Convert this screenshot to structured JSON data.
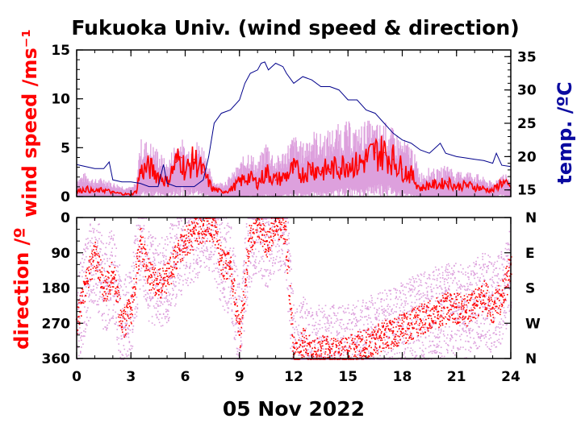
{
  "title": "Fukuoka Univ. (wind speed & direction)",
  "date_label": "05 Nov 2022",
  "colors": {
    "wind_mean": "#ff0000",
    "wind_range": "#dda0dd",
    "temperature": "#00008b",
    "direction_points": "#ff0000",
    "direction_range": "#dda0dd",
    "frame": "#000000"
  },
  "chart_data": [
    {
      "type": "line",
      "panel": "top",
      "ylabel": "wind speed /ms⁻¹",
      "y2label": "temp. /ºC",
      "xlim": [
        0,
        24
      ],
      "x_ticks": [
        "0",
        "3",
        "6",
        "9",
        "12",
        "15",
        "18",
        "21",
        "24"
      ],
      "ylim": [
        0,
        15
      ],
      "y_ticks": [
        "0",
        "5",
        "10",
        "15"
      ],
      "y2lim": [
        14,
        36
      ],
      "y2_ticks": [
        "15",
        "20",
        "25",
        "30",
        "35"
      ],
      "grid": false,
      "series": [
        {
          "key": "wind_speed",
          "x": [
            0,
            0.5,
            1,
            1.5,
            2,
            2.5,
            3,
            3.3,
            3.5,
            4,
            4.5,
            5,
            5.5,
            5.8,
            6,
            6.5,
            7,
            7.5,
            8,
            8.5,
            9,
            9.5,
            10,
            10.5,
            11,
            11.5,
            12,
            12.5,
            13,
            13.5,
            14,
            14.5,
            15,
            15.5,
            16,
            16.5,
            17,
            17.5,
            18,
            18.5,
            19,
            19.5,
            20,
            20.5,
            21,
            21.5,
            22,
            22.5,
            23,
            23.5,
            24
          ],
          "values": [
            0.5,
            0.8,
            0.5,
            0.7,
            0.4,
            0.3,
            0.2,
            0.5,
            2.5,
            3.0,
            2.2,
            1.5,
            3.5,
            4.0,
            2.5,
            3.8,
            2.5,
            0.8,
            0.5,
            0.7,
            1.5,
            2.0,
            1.4,
            2.5,
            1.7,
            2.0,
            2.8,
            2.3,
            3.0,
            2.6,
            2.8,
            3.0,
            3.5,
            3.2,
            3.8,
            4.5,
            4.5,
            3.8,
            2.8,
            2.2,
            0.8,
            1.2,
            1.2,
            1.5,
            1.0,
            1.2,
            1.0,
            0.8,
            0.6,
            1.5,
            0.9
          ],
          "high": [
            2.0,
            2.5,
            1.8,
            2.0,
            1.5,
            1.2,
            1.0,
            1.5,
            6.0,
            5.8,
            5.0,
            3.5,
            6.0,
            6.2,
            5.0,
            6.0,
            5.5,
            1.8,
            1.5,
            2.2,
            3.5,
            5.0,
            3.5,
            6.0,
            4.0,
            5.0,
            6.5,
            5.5,
            7.0,
            6.5,
            7.0,
            7.5,
            7.8,
            7.0,
            8.0,
            7.5,
            7.8,
            7.0,
            6.0,
            5.5,
            2.5,
            3.0,
            2.8,
            3.5,
            2.5,
            2.8,
            2.5,
            2.0,
            1.5,
            2.5,
            2.0
          ],
          "low": [
            0,
            0,
            0,
            0,
            0,
            0,
            0,
            0,
            0.5,
            0.8,
            0.5,
            0.2,
            1.0,
            1.5,
            0.5,
            1.0,
            0.5,
            0,
            0,
            0,
            0,
            0.2,
            0,
            0.3,
            0,
            0.2,
            0.5,
            0.3,
            0.5,
            0.5,
            0.5,
            0.8,
            1.0,
            0.8,
            1.0,
            1.5,
            1.5,
            1.0,
            0.5,
            0.3,
            0,
            0,
            0,
            0,
            0,
            0,
            0,
            0,
            0,
            0.3,
            0
          ]
        },
        {
          "key": "temperature",
          "axis": "right",
          "x": [
            0,
            0.5,
            1,
            1.5,
            1.8,
            2,
            2.5,
            3,
            3.5,
            4,
            4.5,
            4.8,
            5,
            5.5,
            6,
            6.5,
            7,
            7.3,
            7.6,
            8,
            8.5,
            9,
            9.3,
            9.6,
            10,
            10.2,
            10.4,
            10.6,
            11,
            11.4,
            11.6,
            12,
            12.5,
            13,
            13.5,
            14,
            14.5,
            15,
            15.5,
            16,
            16.5,
            17,
            17.5,
            18,
            18.5,
            19,
            19.5,
            19.9,
            20.1,
            20.4,
            21,
            21.5,
            22,
            22.5,
            23,
            23.2,
            23.5,
            24
          ],
          "values": [
            18.8,
            18.5,
            18.2,
            18.2,
            19.2,
            16.5,
            16.2,
            16.2,
            16.0,
            15.5,
            15.5,
            18.8,
            16.0,
            15.5,
            15.5,
            15.5,
            16.5,
            20.0,
            25.0,
            26.5,
            27.0,
            28.5,
            31.0,
            32.5,
            33.0,
            34.0,
            34.2,
            33.0,
            34.0,
            33.5,
            32.5,
            31.0,
            32.0,
            31.5,
            30.5,
            30.5,
            30.0,
            28.5,
            28.5,
            27.0,
            26.5,
            25.0,
            23.5,
            22.5,
            22.0,
            21.0,
            20.5,
            21.5,
            22.0,
            20.5,
            20.0,
            19.8,
            19.6,
            19.4,
            19.0,
            20.5,
            18.7,
            18.5
          ]
        }
      ]
    },
    {
      "type": "scatter",
      "panel": "bottom",
      "ylabel": "direction /º",
      "xlim": [
        0,
        24
      ],
      "x_ticks": [
        "0",
        "3",
        "6",
        "9",
        "12",
        "15",
        "18",
        "21",
        "24"
      ],
      "ylim": [
        360,
        0
      ],
      "y_ticks": [
        "0",
        "90",
        "180",
        "270",
        "360"
      ],
      "y2_ticks": [
        "N",
        "E",
        "S",
        "W",
        "N"
      ],
      "grid": false,
      "series": [
        {
          "key": "direction",
          "x": [
            0,
            0.5,
            1,
            1.5,
            2,
            2.5,
            3,
            3.5,
            4,
            4.5,
            5,
            5.5,
            6,
            6.5,
            7,
            7.5,
            8,
            8.5,
            9,
            9.5,
            10,
            10.5,
            11,
            11.5,
            12,
            12.5,
            13,
            13.5,
            14,
            14.5,
            15,
            15.5,
            16,
            16.5,
            17,
            17.5,
            18,
            18.5,
            19,
            19.5,
            20,
            20.5,
            21,
            21.5,
            22,
            22.5,
            23,
            23.5,
            24
          ],
          "values": [
            260,
            170,
            90,
            180,
            140,
            280,
            230,
            60,
            150,
            170,
            150,
            100,
            60,
            40,
            20,
            20,
            110,
            130,
            300,
            60,
            20,
            60,
            10,
            30,
            350,
            320,
            350,
            340,
            340,
            345,
            340,
            330,
            320,
            310,
            300,
            290,
            285,
            270,
            260,
            250,
            240,
            230,
            230,
            240,
            220,
            200,
            230,
            200,
            120
          ]
        }
      ]
    }
  ]
}
